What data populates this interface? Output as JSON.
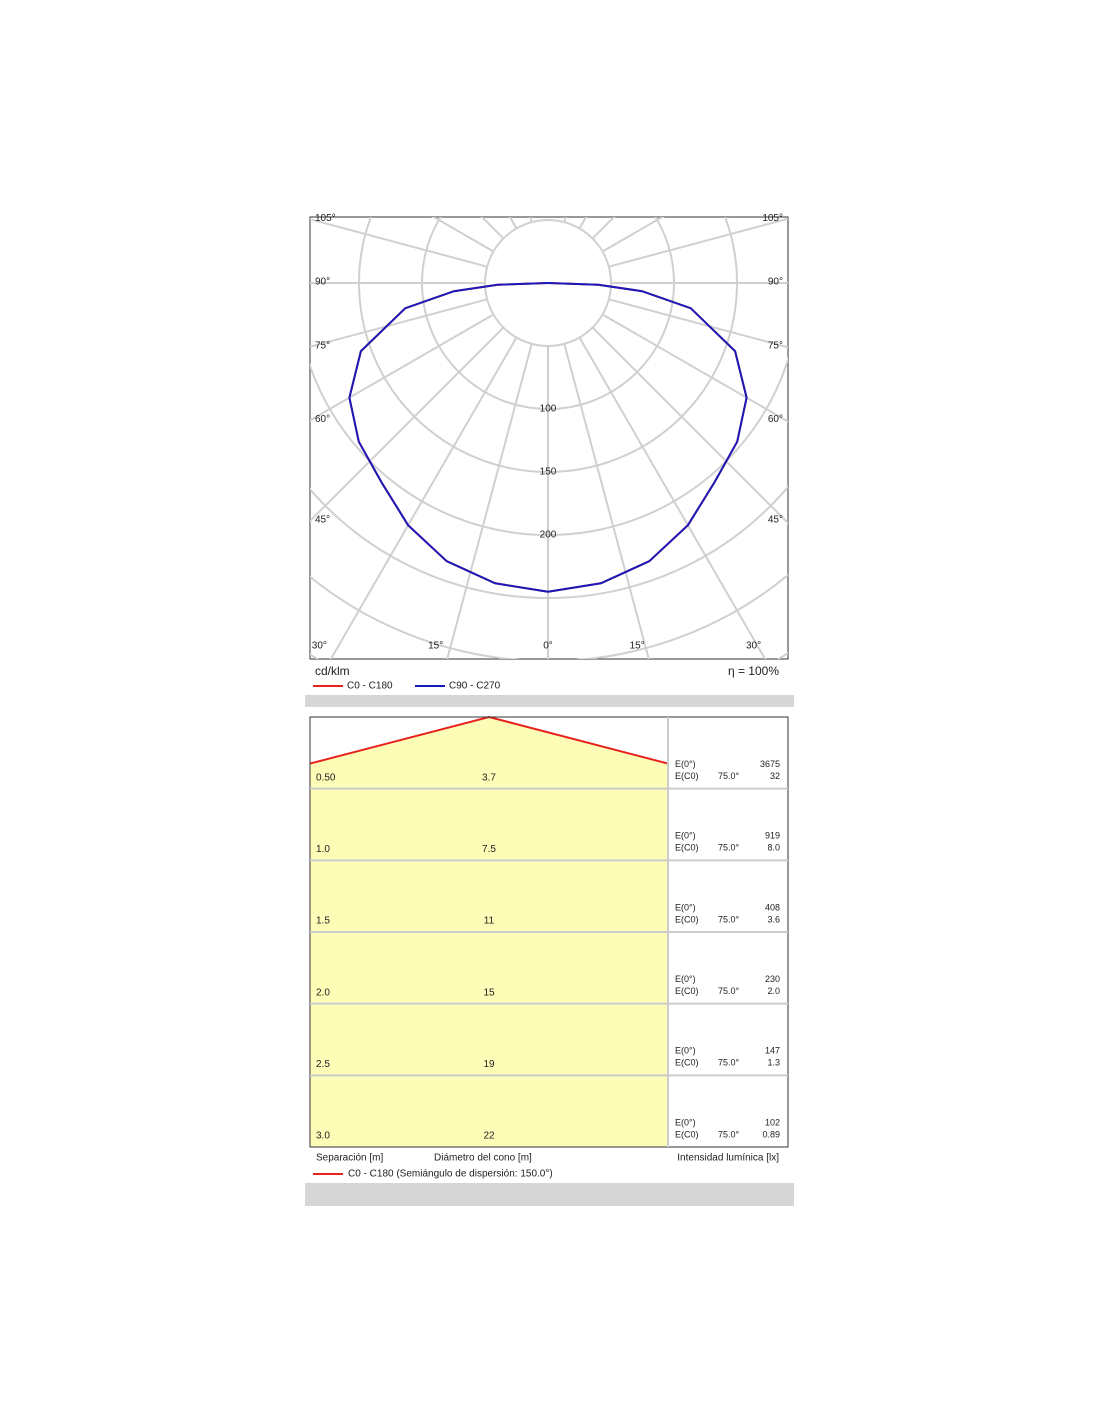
{
  "chart_data": {
    "type": "polar",
    "unit_label": "cd/klm",
    "efficiency": "η = 100%",
    "angles": [
      0,
      10,
      20,
      30,
      40,
      50,
      60,
      70,
      80,
      85,
      88,
      90
    ],
    "series": [
      {
        "name": "C0 - C180",
        "color": "#e8211d",
        "values": [
          245,
          242,
          235,
          222,
          206,
          196,
          182,
          158,
          115,
          75,
          40,
          0
        ]
      },
      {
        "name": "C90 - C270",
        "color": "#1a1ab8",
        "values": [
          245,
          242,
          235,
          222,
          206,
          196,
          182,
          158,
          115,
          75,
          40,
          0
        ]
      }
    ],
    "rticks": [
      100,
      150,
      200
    ],
    "angle_ticks": [
      {
        "value": 0,
        "label": "0°"
      },
      {
        "value": 15,
        "label": "15°"
      },
      {
        "value": 30,
        "label": "30°"
      },
      {
        "value": 45,
        "label": "45°"
      },
      {
        "value": 60,
        "label": "60°"
      },
      {
        "value": 75,
        "label": "75°"
      },
      {
        "value": 90,
        "label": "90°"
      },
      {
        "value": 105,
        "label": "105°"
      }
    ],
    "grid": true
  },
  "table": {
    "label_e0": "E(0°)",
    "label_ec0": "E(C0)",
    "angle": "75.0°",
    "rows": [
      {
        "separation": "0.50",
        "diameter": "3.7",
        "e0": "3675",
        "ec0": "32"
      },
      {
        "separation": "1.0",
        "diameter": "7.5",
        "e0": "919",
        "ec0": "8.0"
      },
      {
        "separation": "1.5",
        "diameter": "11",
        "e0": "408",
        "ec0": "3.6"
      },
      {
        "separation": "2.0",
        "diameter": "15",
        "e0": "230",
        "ec0": "2.0"
      },
      {
        "separation": "2.5",
        "diameter": "19",
        "e0": "147",
        "ec0": "1.3"
      },
      {
        "separation": "3.0",
        "diameter": "22",
        "e0": "102",
        "ec0": "0.89"
      }
    ],
    "footer": {
      "separation": "Separación [m]",
      "diameter": "Diámetro del cono [m]",
      "intensity": "Intensidad lumínica [lx]"
    },
    "legend": "C0 - C180 (Semiángulo de dispersión: 150.0°)"
  }
}
